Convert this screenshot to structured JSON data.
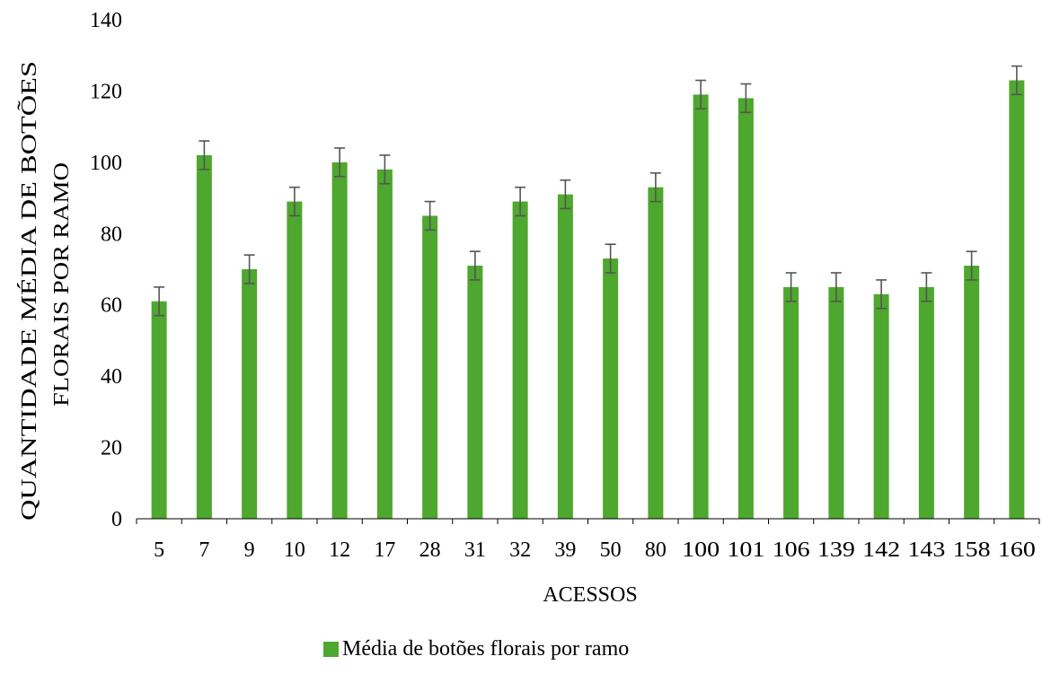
{
  "chart_data": {
    "type": "bar",
    "title": "",
    "xlabel": "ACESSOS",
    "ylabel_lines": [
      "QUANTIDADE MÉDIA DE BOTÕES",
      "FLORAIS POR RAMO"
    ],
    "ylim": [
      0,
      140
    ],
    "yticks": [
      0,
      20,
      40,
      60,
      80,
      100,
      120,
      140
    ],
    "categories": [
      "5",
      "7",
      "9",
      "10",
      "12",
      "17",
      "28",
      "31",
      "32",
      "39",
      "50",
      "80",
      "100",
      "101",
      "106",
      "139",
      "142",
      "143",
      "158",
      "160"
    ],
    "series": [
      {
        "name": "Média de botões florais por ramo",
        "color": "#4ea72e",
        "values": [
          61,
          102,
          70,
          89,
          100,
          98,
          85,
          71,
          89,
          91,
          73,
          93,
          119,
          118,
          65,
          65,
          63,
          65,
          71,
          123
        ],
        "error": [
          4,
          4,
          4,
          4,
          4,
          4,
          4,
          4,
          4,
          4,
          4,
          4,
          4,
          4,
          4,
          4,
          4,
          4,
          4,
          4
        ]
      }
    ],
    "grid": false,
    "legend_position": "bottom"
  }
}
